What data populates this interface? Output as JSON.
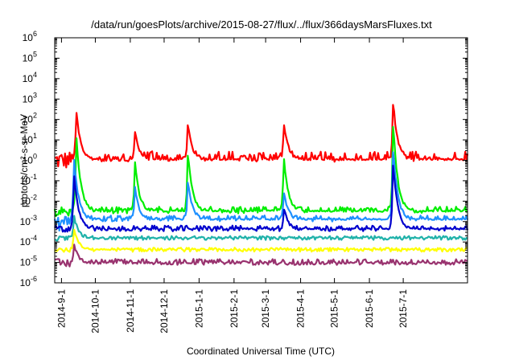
{
  "chart_data": {
    "type": "line",
    "title": "/data/run/goesPlots/archive/2015-08-27/flux/../flux/366daysMarsFluxes.txt",
    "xlabel": "Coordinated Universal Time (UTC)",
    "ylabel": "protons/cm²-s-sr-MeV",
    "yscale": "log",
    "ylim": [
      1e-06,
      1000000.0
    ],
    "xlim": [
      "2014-08-26",
      "2015-08-27"
    ],
    "grid": false,
    "legend": "none",
    "xticks": [
      "2014-9-1",
      "2014-10-1",
      "2014-11-1",
      "2014-12-1",
      "2015-1-1",
      "2015-2-1",
      "2015-3-1",
      "2015-4-1",
      "2015-5-1",
      "2015-6-1",
      "2015-7-1"
    ],
    "yticks": [
      {
        "base": "10",
        "exp": "-6",
        "value": 1e-06
      },
      {
        "base": "10",
        "exp": "-5",
        "value": 1e-05
      },
      {
        "base": "10",
        "exp": "-4",
        "value": 0.0001
      },
      {
        "base": "10",
        "exp": "-3",
        "value": 0.001
      },
      {
        "base": "10",
        "exp": "-2",
        "value": 0.01
      },
      {
        "base": "10",
        "exp": "-1",
        "value": 0.1
      },
      {
        "base": "10",
        "exp": "0",
        "value": 1
      },
      {
        "base": "10",
        "exp": "1",
        "value": 10
      },
      {
        "base": "10",
        "exp": "2",
        "value": 100
      },
      {
        "base": "10",
        "exp": "3",
        "value": 1000
      },
      {
        "base": "10",
        "exp": "4",
        "value": 10000
      },
      {
        "base": "10",
        "exp": "5",
        "value": 100000
      },
      {
        "base": "10",
        "exp": "6",
        "value": 1000000
      }
    ],
    "series": [
      {
        "color": "#ff0000",
        "baseline": 1.0,
        "noise_decades": 0.45,
        "peaks": [
          [
            "2014-09-14",
            350
          ],
          [
            "2014-11-05",
            30
          ],
          [
            "2014-12-22",
            60
          ],
          [
            "2015-03-17",
            80
          ],
          [
            "2015-06-22",
            900
          ]
        ]
      },
      {
        "color": "#00ee00",
        "baseline": 0.003,
        "noise_decades": 0.25,
        "peaks": [
          [
            "2014-09-14",
            25
          ],
          [
            "2014-11-05",
            1
          ],
          [
            "2014-12-22",
            3
          ],
          [
            "2015-03-17",
            2
          ],
          [
            "2015-06-22",
            100
          ]
        ]
      },
      {
        "color": "#1e90ff",
        "baseline": 0.0012,
        "noise_decades": 0.22,
        "peaks": [
          [
            "2014-09-12",
            2
          ],
          [
            "2014-11-05",
            0.05
          ],
          [
            "2014-12-22",
            0.1
          ],
          [
            "2015-03-17",
            0.03
          ],
          [
            "2015-06-22",
            5
          ]
        ]
      },
      {
        "color": "#0000cd",
        "baseline": 0.0004,
        "noise_decades": 0.2,
        "peaks": [
          [
            "2014-09-12",
            0.3
          ],
          [
            "2015-03-17",
            0.005
          ],
          [
            "2015-06-22",
            1
          ]
        ]
      },
      {
        "color": "#20b2aa",
        "baseline": 0.00015,
        "noise_decades": 0.12,
        "peaks": [
          [
            "2014-09-12",
            0.002
          ]
        ]
      },
      {
        "color": "#ffff00",
        "baseline": 4e-05,
        "noise_decades": 0.12,
        "peaks": [
          [
            "2014-09-12",
            0.0005
          ]
        ]
      },
      {
        "color": "#99336f",
        "baseline": 9e-06,
        "noise_decades": 0.22,
        "peaks": [
          [
            "2014-09-12",
            8e-05
          ]
        ]
      }
    ]
  }
}
